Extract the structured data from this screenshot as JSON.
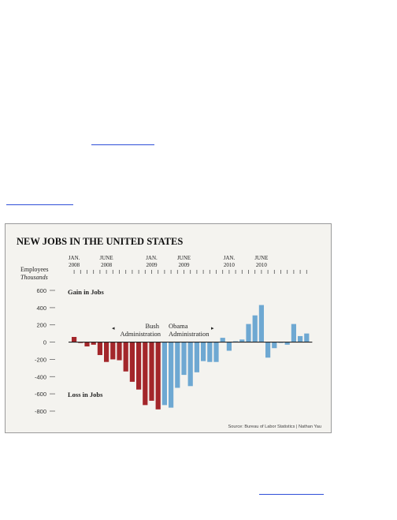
{
  "colors": {
    "page_bg": "#ffffff",
    "link": "#2f4fd8",
    "panel_bg": "#f4f3ef",
    "bush": "#a3262a",
    "obama": "#6ea8d2",
    "axis": "#222222",
    "muted": "#666666"
  },
  "chart_data": {
    "type": "bar",
    "title": "NEW JOBS IN THE UNITED STATES",
    "ylabel": "Employees",
    "ylabel_unit": "Thousands",
    "ylim": [
      -800,
      600
    ],
    "yticks": [
      600,
      400,
      200,
      0,
      -200,
      -400,
      -600,
      -800
    ],
    "ytick_labels": [
      "600",
      "400",
      "200",
      "0",
      "-200",
      "-400",
      "-600",
      "-800"
    ],
    "x_markers": [
      {
        "line1": "JAN.",
        "line2": "2008",
        "index": 0
      },
      {
        "line1": "JUNE",
        "line2": "2008",
        "index": 5
      },
      {
        "line1": "JAN.",
        "line2": "2009",
        "index": 12
      },
      {
        "line1": "JUNE",
        "line2": "2009",
        "index": 17
      },
      {
        "line1": "JAN.",
        "line2": "2010",
        "index": 24
      },
      {
        "line1": "JUNE",
        "line2": "2010",
        "index": 29
      }
    ],
    "series": [
      {
        "name": "Bush Administration",
        "color": "#a3262a",
        "start_index": 0,
        "values": [
          60,
          -10,
          -50,
          -30,
          -150,
          -230,
          -200,
          -210,
          -340,
          -460,
          -550,
          -730,
          -680,
          -780
        ]
      },
      {
        "name": "Obama Administration",
        "color": "#6ea8d2",
        "start_index": 14,
        "values": [
          -730,
          -760,
          -530,
          -380,
          -510,
          -350,
          -220,
          -230,
          -230,
          50,
          -100,
          10,
          30,
          210,
          310,
          430,
          -180,
          -70,
          0,
          -30,
          210,
          70,
          100
        ]
      }
    ],
    "annotations": {
      "gain": "Gain in Jobs",
      "loss": "Loss in Jobs",
      "bush_line1": "Bush",
      "bush_line2": "Administration",
      "obama_line1": "Obama",
      "obama_line2": "Administration",
      "arrow_left": "◂",
      "arrow_right": "▸"
    },
    "source": "Source: Bureau of Labor Statistics | Nathan Yau",
    "grid": false,
    "legend": "none"
  }
}
